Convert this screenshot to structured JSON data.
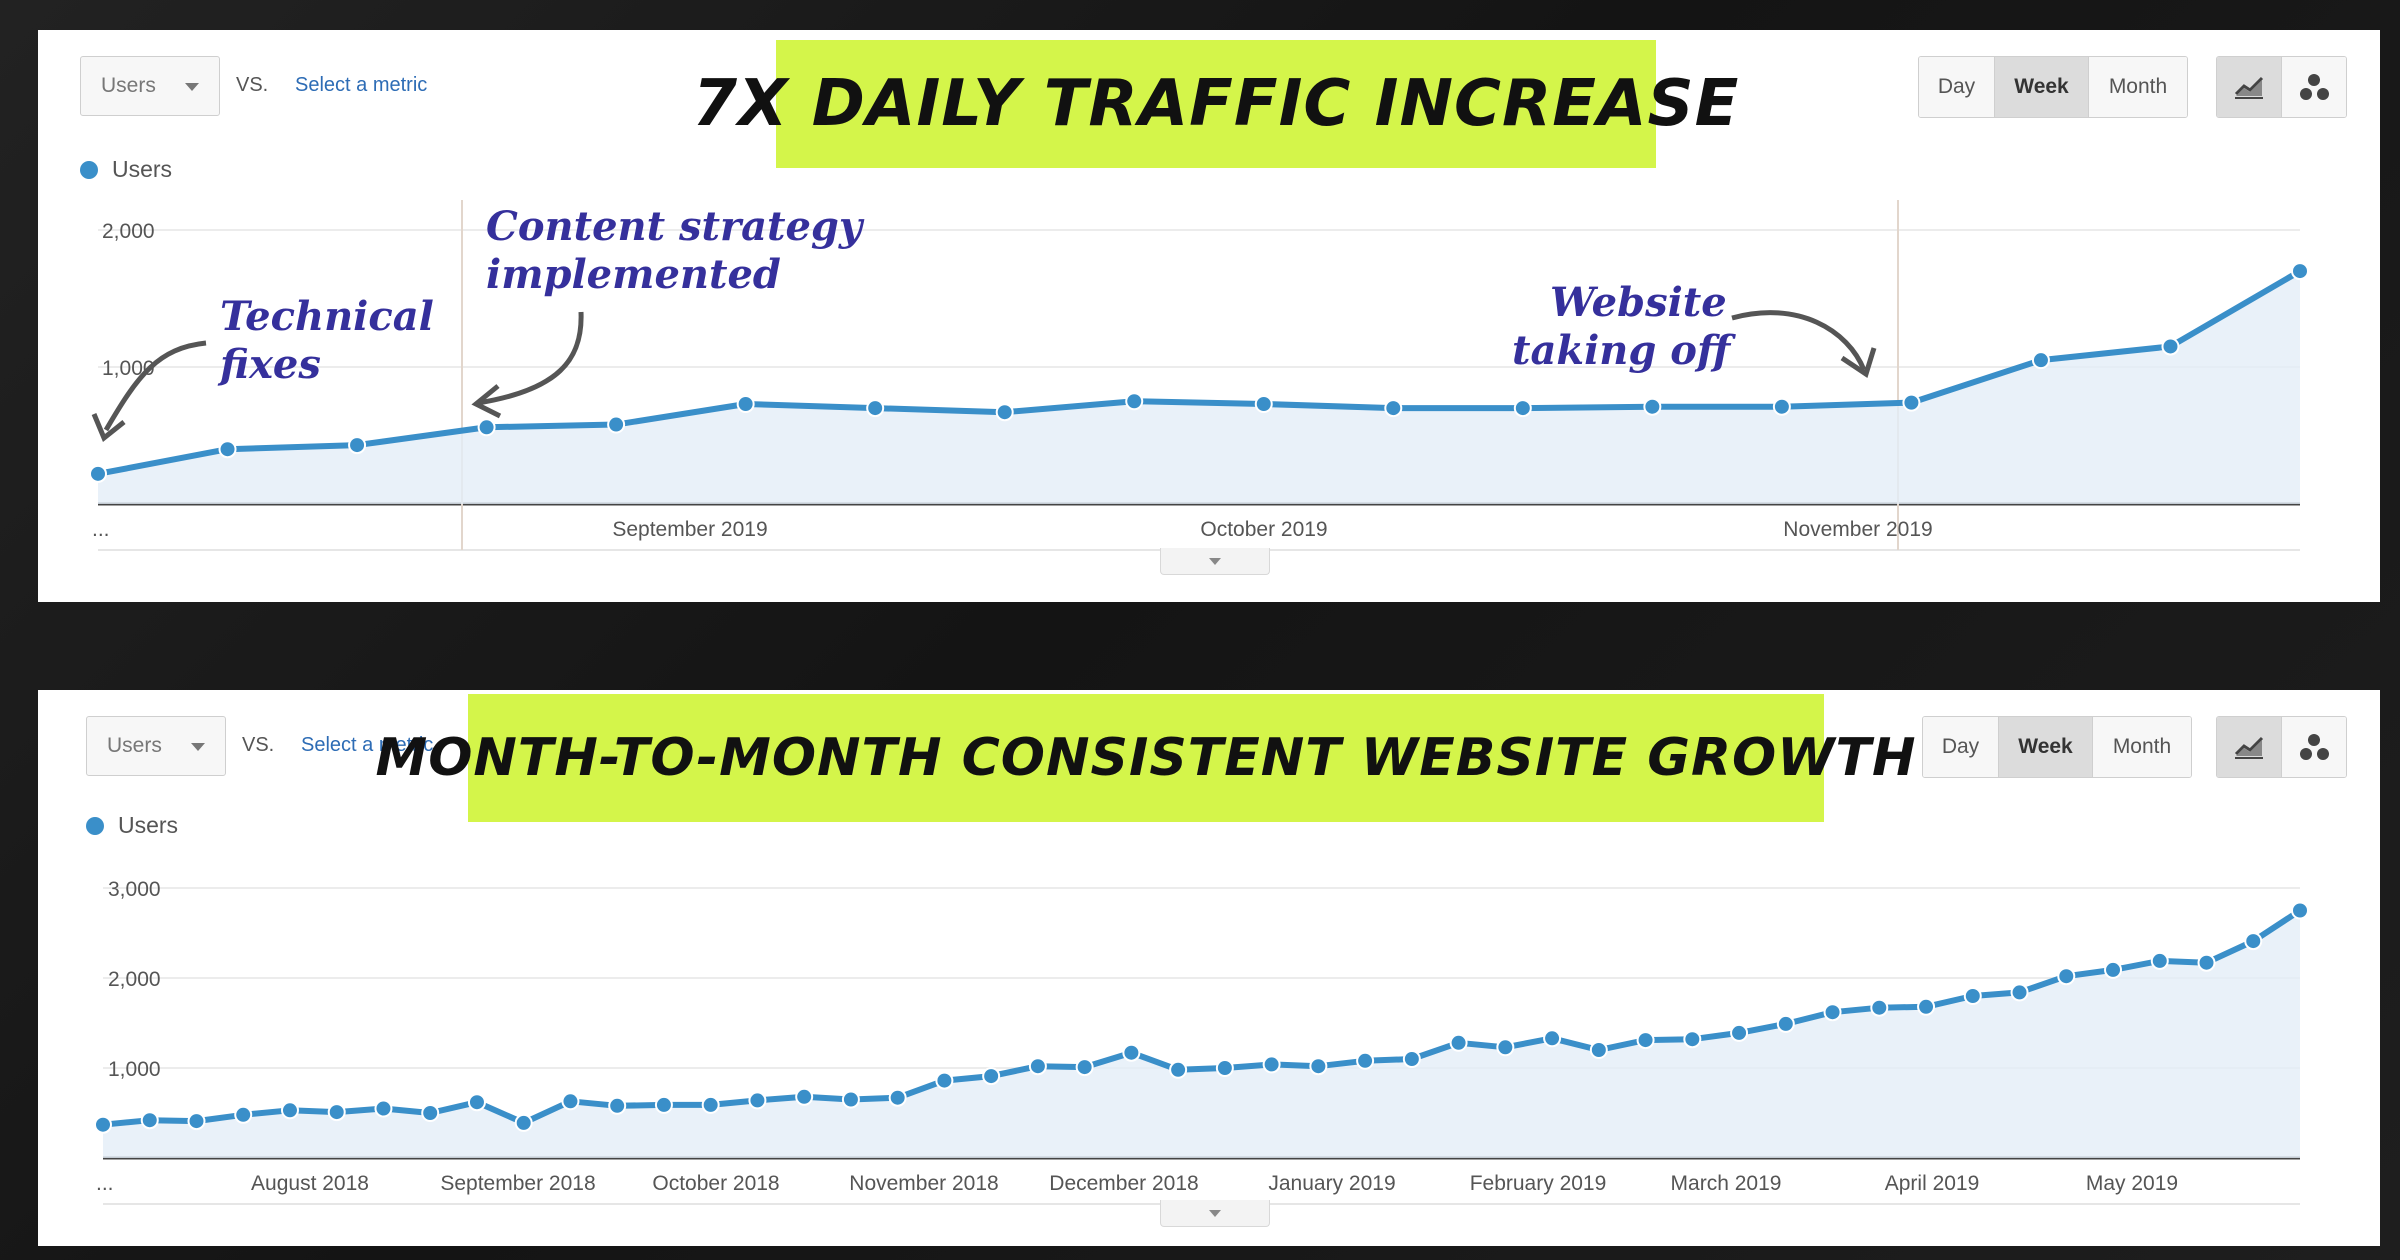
{
  "colors": {
    "line": "#3a8fc9",
    "fill": "#e3eef8",
    "banner": "#d4f54a",
    "annotation": "#35309c",
    "background": "#1b1b1b"
  },
  "panel1": {
    "metric_label": "Users",
    "vs_label": "VS.",
    "select_metric": "Select a metric",
    "title": "7X DAILY TRAFFIC INCREASE",
    "range_buttons": [
      "Day",
      "Week",
      "Month"
    ],
    "active_range": "Week",
    "view_icons": [
      "line-chart-icon",
      "motion-chart-icon"
    ],
    "legend": "Users",
    "annotations": [
      {
        "text": [
          "Technical",
          "fixes"
        ]
      },
      {
        "text": [
          "Content strategy",
          "implemented"
        ]
      },
      {
        "text": [
          "Website",
          "taking off"
        ]
      }
    ],
    "chart_data": {
      "type": "area",
      "series": [
        {
          "name": "Users",
          "values": [
            220,
            400,
            430,
            560,
            580,
            730,
            700,
            670,
            750,
            730,
            700,
            700,
            710,
            710,
            740,
            1050,
            1150,
            1700
          ]
        }
      ],
      "x_labels": [
        "...",
        "September 2019",
        "October 2019",
        "November 2019"
      ],
      "ylim": [
        0,
        2000
      ],
      "y_ticks": [
        "2,000",
        "1,000"
      ],
      "grid": true
    }
  },
  "panel2": {
    "metric_label": "Users",
    "vs_label": "VS.",
    "select_metric": "Select a metric",
    "title": "MONTH-TO-MONTH CONSISTENT WEBSITE GROWTH",
    "range_buttons": [
      "Day",
      "Week",
      "Month"
    ],
    "active_range": "Week",
    "view_icons": [
      "line-chart-icon",
      "motion-chart-icon"
    ],
    "legend": "Users",
    "chart_data": {
      "type": "area",
      "series": [
        {
          "name": "Users",
          "values": [
            370,
            420,
            410,
            480,
            530,
            510,
            550,
            500,
            620,
            390,
            630,
            580,
            590,
            590,
            640,
            680,
            650,
            670,
            860,
            910,
            1020,
            1010,
            1170,
            980,
            1000,
            1040,
            1020,
            1080,
            1100,
            1280,
            1230,
            1330,
            1200,
            1310,
            1320,
            1390,
            1490,
            1620,
            1670,
            1680,
            1800,
            1840,
            2020,
            2090,
            2190,
            2170,
            2410,
            2750
          ]
        }
      ],
      "x_labels": [
        "...",
        "August 2018",
        "September 2018",
        "October 2018",
        "November 2018",
        "December 2018",
        "January 2019",
        "February 2019",
        "March 2019",
        "April 2019",
        "May 2019"
      ],
      "ylim": [
        0,
        3000
      ],
      "y_ticks": [
        "3,000",
        "2,000",
        "1,000"
      ],
      "grid": true
    }
  }
}
